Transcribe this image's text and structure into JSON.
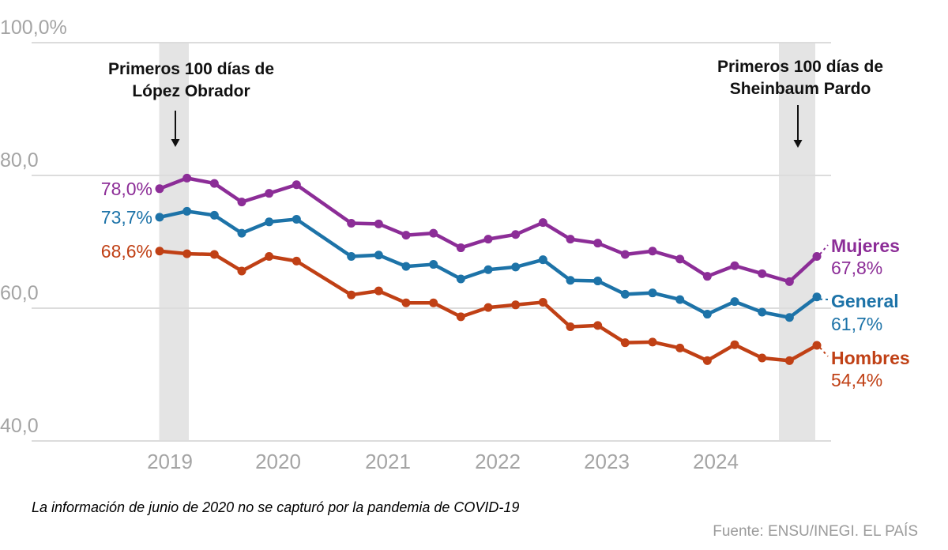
{
  "chart_data": {
    "type": "line",
    "grid": "horizontal",
    "legend_position": "right-inline",
    "ylim": [
      40,
      100
    ],
    "y_ticks": [
      {
        "value": 100,
        "label": "100,0%"
      },
      {
        "value": 80,
        "label": "80,0"
      },
      {
        "value": 60,
        "label": "60,0"
      },
      {
        "value": 40,
        "label": "40,0"
      }
    ],
    "x_tick_labels": [
      "2019",
      "2020",
      "2021",
      "2022",
      "2023",
      "2024"
    ],
    "x": [
      "dic 2018",
      "mar 2019",
      "jun 2019",
      "sep 2019",
      "dic 2019",
      "mar 2020",
      "jun 2020",
      "sep 2020",
      "dic 2020",
      "mar 2021",
      "jun 2021",
      "sep 2021",
      "dic 2021",
      "mar 2022",
      "jun 2022",
      "sep 2022",
      "dic 2022",
      "mar 2023",
      "jun 2023",
      "sep 2023",
      "dic 2023",
      "mar 2024",
      "jun 2024",
      "sep 2024",
      "dic 2024"
    ],
    "series": [
      {
        "name": "Mujeres",
        "color": "#8C2D97",
        "start_label": "78,0%",
        "end_value_label": "67,8%",
        "values": [
          78.0,
          79.6,
          78.8,
          76.0,
          77.3,
          78.6,
          null,
          72.8,
          72.7,
          71.0,
          71.3,
          69.1,
          70.4,
          71.1,
          72.9,
          70.4,
          69.8,
          68.1,
          68.6,
          67.4,
          64.8,
          66.4,
          65.2,
          64.0,
          67.8
        ]
      },
      {
        "name": "General",
        "color": "#1D73A8",
        "start_label": "73,7%",
        "end_value_label": "61,7%",
        "values": [
          73.7,
          74.6,
          74.0,
          71.3,
          73.0,
          73.4,
          null,
          67.8,
          68.0,
          66.3,
          66.6,
          64.4,
          65.8,
          66.2,
          67.3,
          64.2,
          64.1,
          62.1,
          62.3,
          61.3,
          59.1,
          61.0,
          59.4,
          58.6,
          61.7
        ]
      },
      {
        "name": "Hombres",
        "color": "#C04015",
        "start_label": "68,6%",
        "end_value_label": "54,4%",
        "values": [
          68.6,
          68.2,
          68.1,
          65.6,
          67.8,
          67.1,
          null,
          62.0,
          62.6,
          60.8,
          60.8,
          58.7,
          60.1,
          60.5,
          60.9,
          57.2,
          57.4,
          54.8,
          54.9,
          54.0,
          52.1,
          54.5,
          52.5,
          52.1,
          54.4
        ]
      }
    ],
    "annotations": [
      {
        "line1": "Primeros 100 días de",
        "line2": "López Obrador",
        "band": [
          201.5,
          239
        ],
        "arrow_x": 222,
        "arrow_y1": 140,
        "arrow_y2": 186
      },
      {
        "line1": "Primeros 100 días de",
        "line2": "Sheinbaum Pardo",
        "band": [
          986,
          1032
        ],
        "arrow_x": 1010,
        "arrow_y1": 133,
        "arrow_y2": 187
      }
    ]
  },
  "footnote": "La información de junio de 2020 no se capturó por la pandemia de COVID-19",
  "source": "Fuente: ENSU/INEGI. EL PAÍS",
  "colors": {
    "band": "#E4E4E4",
    "gridline": "#DCDCDC",
    "axis_text": "#A4A4A4",
    "annotation": "#111111"
  }
}
